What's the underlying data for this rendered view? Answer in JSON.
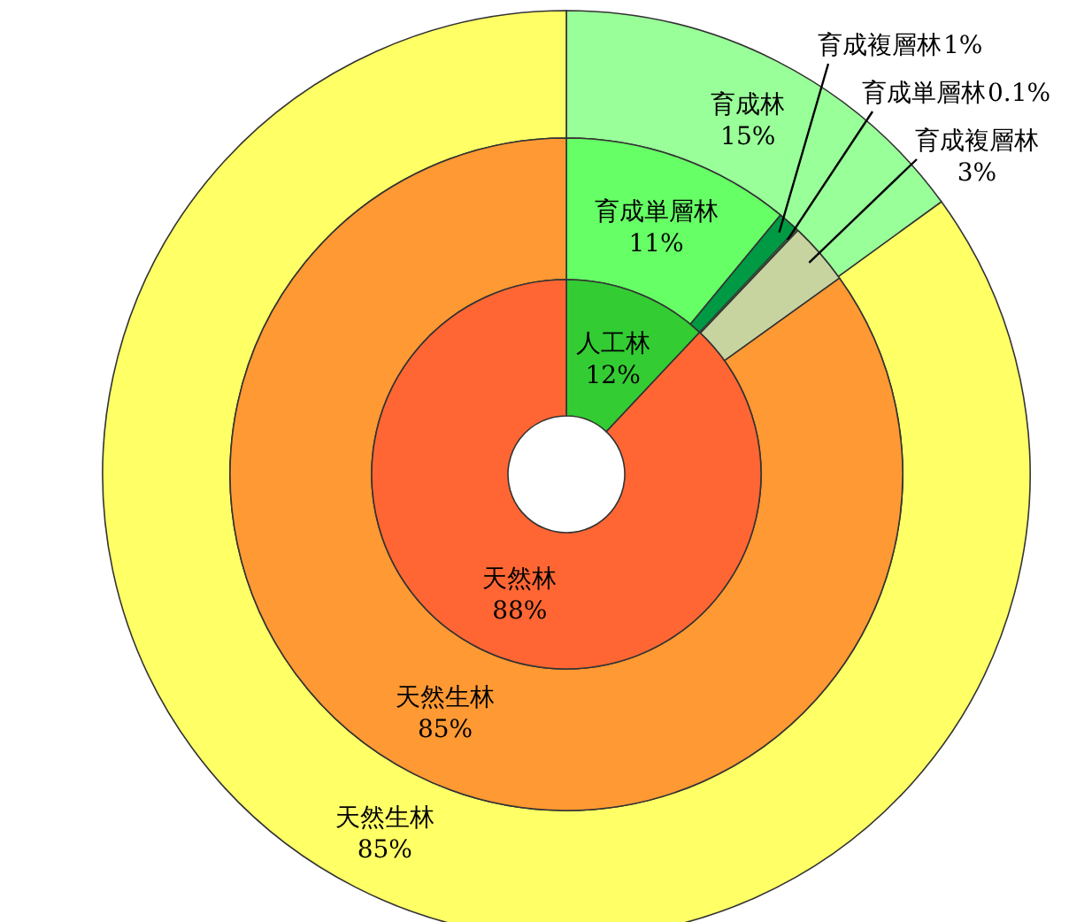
{
  "chart_data": [
    {
      "type": "donut",
      "categories": [
        "人工林",
        "天然林"
      ],
      "values": [
        12,
        88
      ],
      "colors": [
        "#33cc33",
        "#ff6633"
      ],
      "value_labels": [
        "12%",
        "88%"
      ]
    },
    {
      "type": "donut",
      "categories": [
        "育成単層林",
        "育成複層林",
        "育成単層林",
        "育成複層林",
        "天然生林"
      ],
      "values": [
        11,
        1,
        0.1,
        3,
        85
      ],
      "colors": [
        "#66ff66",
        "#009944",
        "#336633",
        "#c8d4a0",
        "#ff9933"
      ],
      "value_labels": [
        "11%",
        "1%",
        "0.1%",
        "3%",
        "85%"
      ]
    },
    {
      "type": "donut",
      "categories": [
        "育成林",
        "天然生林"
      ],
      "values": [
        15,
        85
      ],
      "colors": [
        "#99ff99",
        "#ffff66"
      ],
      "value_labels": [
        "15%",
        "85%"
      ]
    }
  ]
}
